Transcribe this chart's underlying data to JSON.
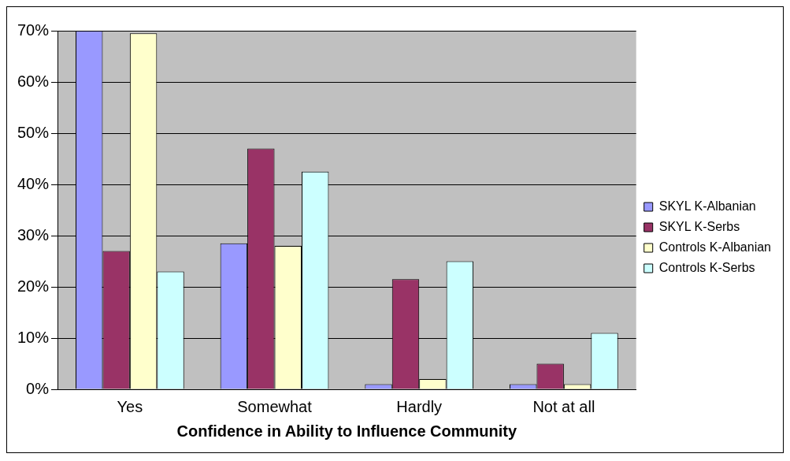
{
  "chart_data": {
    "type": "bar",
    "xlabel": "Confidence in Ability to Influence Community",
    "categories": [
      "Yes",
      "Somewhat",
      "Hardly",
      "Not at all"
    ],
    "series": [
      {
        "name": "SKYL K-Albanian",
        "color": "#9999ff",
        "values": [
          70,
          28.5,
          1,
          1
        ]
      },
      {
        "name": "SKYL K-Serbs",
        "color": "#993366",
        "values": [
          27,
          47,
          21.5,
          5
        ]
      },
      {
        "name": "Controls K-Albanian",
        "color": "#ffffcc",
        "values": [
          69.5,
          28,
          2,
          1
        ]
      },
      {
        "name": "Controls K-Serbs",
        "color": "#ccffff",
        "values": [
          23,
          42.5,
          25,
          11
        ]
      }
    ],
    "ylim": [
      0,
      70
    ],
    "yticks": [
      {
        "value": 0,
        "label": "0%"
      },
      {
        "value": 10,
        "label": "10%"
      },
      {
        "value": 20,
        "label": "20%"
      },
      {
        "value": 30,
        "label": "30%"
      },
      {
        "value": 40,
        "label": "40%"
      },
      {
        "value": 50,
        "label": "50%"
      },
      {
        "value": 60,
        "label": "60%"
      },
      {
        "value": 70,
        "label": "70%"
      }
    ],
    "grid": "y",
    "legend": "right"
  }
}
